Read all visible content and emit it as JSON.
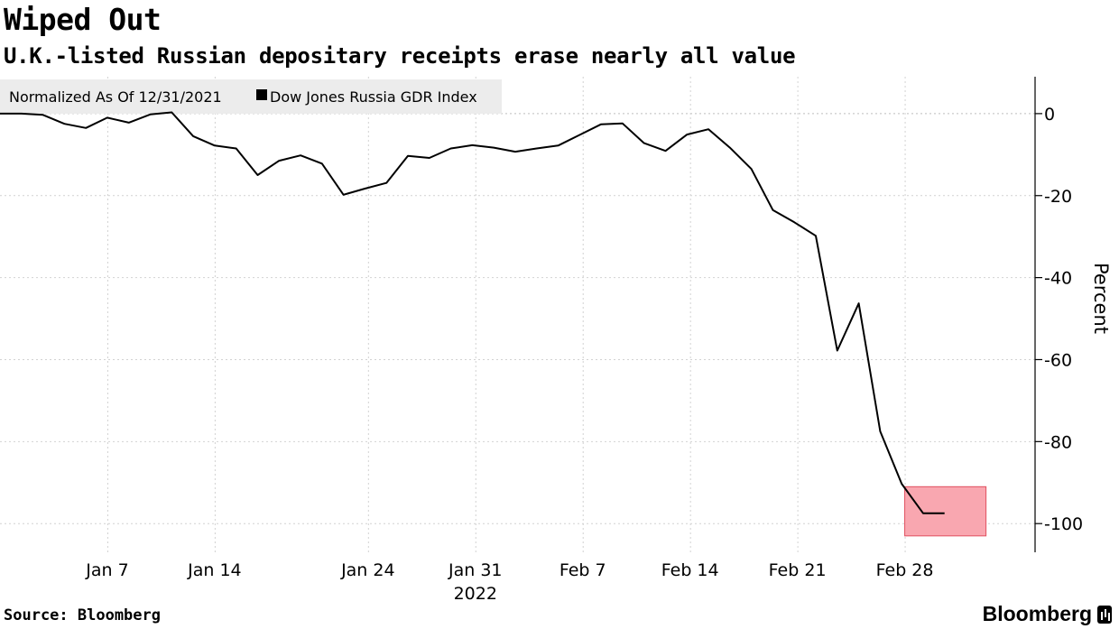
{
  "header": {
    "title": "Wiped Out",
    "subtitle": "U.K.-listed Russian depositary receipts erase nearly all value"
  },
  "footer": {
    "source": "Source: Bloomberg",
    "brand": "Bloomberg"
  },
  "chart_data": {
    "type": "line",
    "title": "Wiped Out",
    "subtitle": "U.K.-listed Russian depositary receipts erase nearly all value",
    "legend_note": "Normalized As Of 12/31/2021",
    "legend_position": "top-left",
    "ylabel": "Percent",
    "xlabel": "2022",
    "ylim": [
      -107,
      9
    ],
    "y_ticks": [
      0,
      -20,
      -40,
      -60,
      -80,
      -100
    ],
    "y_tick_labels": [
      "0",
      "-20",
      "-40",
      "-60",
      "-80",
      "-100"
    ],
    "x_range_days": [
      0,
      67.5
    ],
    "x_ticks": [
      {
        "label": "Jan 7",
        "day": 7
      },
      {
        "label": "Jan 14",
        "day": 14
      },
      {
        "label": "Jan 24",
        "day": 24
      },
      {
        "label": "Jan 31",
        "day": 31
      },
      {
        "label": "Feb 7",
        "day": 38
      },
      {
        "label": "Feb 14",
        "day": 45
      },
      {
        "label": "Feb 21",
        "day": 52
      },
      {
        "label": "Feb 28",
        "day": 59
      }
    ],
    "grid": true,
    "highlight": {
      "day_start": 59,
      "day_end": 64.3,
      "y_start": -91,
      "y_end": -103,
      "color": "#f9a7b0"
    },
    "series": [
      {
        "name": "Dow Jones Russia GDR Index",
        "color": "#000000",
        "x": [
          0,
          1.4,
          2.8,
          4.2,
          5.6,
          7,
          8.4,
          9.8,
          11.2,
          12.6,
          14,
          15.4,
          16.8,
          18.2,
          19.6,
          21,
          22.4,
          23.8,
          25.2,
          26.6,
          28,
          29.4,
          30.8,
          32.2,
          33.6,
          35,
          36.4,
          37.8,
          39.2,
          40.6,
          42,
          43.4,
          44.8,
          46.2,
          47.6,
          49,
          50.4,
          51.8,
          53.2,
          54.6,
          56,
          57.4,
          58.8,
          60.2,
          61.6
        ],
        "values": [
          0,
          0,
          -0.3,
          -2.5,
          -3.5,
          -1,
          -2.2,
          -0.2,
          0.3,
          -5.5,
          -7.8,
          -8.5,
          -15,
          -11.5,
          -10.2,
          -12.2,
          -19.8,
          -18.3,
          -16.9,
          -10.3,
          -10.8,
          -8.5,
          -7.7,
          -8.3,
          -9.3,
          -8.5,
          -7.8,
          -5.2,
          -2.6,
          -2.4,
          -7.2,
          -9.1,
          -5.1,
          -3.8,
          -8.3,
          -13.5,
          -23.5,
          -26.5,
          -29.8,
          -57.8,
          -46.3,
          -77.5,
          -90.3,
          -97.5,
          -97.5
        ]
      }
    ]
  }
}
